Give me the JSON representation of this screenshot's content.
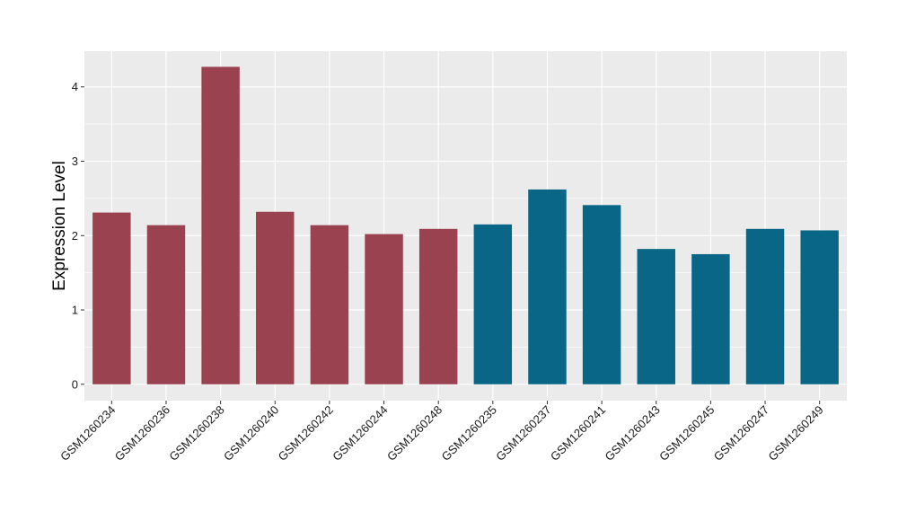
{
  "chart_data": {
    "type": "bar",
    "title": "",
    "xlabel": "",
    "ylabel": "Expression Level",
    "ylim": [
      -0.22,
      4.48
    ],
    "yticks": [
      0,
      1,
      2,
      3,
      4
    ],
    "grid": true,
    "categories": [
      "GSM1260234",
      "GSM1260236",
      "GSM1260238",
      "GSM1260240",
      "GSM1260242",
      "GSM1260244",
      "GSM1260248",
      "GSM1260235",
      "GSM1260237",
      "GSM1260241",
      "GSM1260243",
      "GSM1260245",
      "GSM1260247",
      "GSM1260249"
    ],
    "values": [
      2.31,
      2.14,
      4.27,
      2.32,
      2.14,
      2.02,
      2.09,
      2.15,
      2.62,
      2.41,
      1.82,
      1.75,
      2.09,
      2.07
    ],
    "group_colors": [
      "#9b4250",
      "#9b4250",
      "#9b4250",
      "#9b4250",
      "#9b4250",
      "#9b4250",
      "#9b4250",
      "#0a6687",
      "#0a6687",
      "#0a6687",
      "#0a6687",
      "#0a6687",
      "#0a6687",
      "#0a6687"
    ],
    "colors": {
      "panel": "#ebebeb",
      "grid": "#ffffff",
      "group_a": "#9b4250",
      "group_b": "#0a6687"
    }
  }
}
